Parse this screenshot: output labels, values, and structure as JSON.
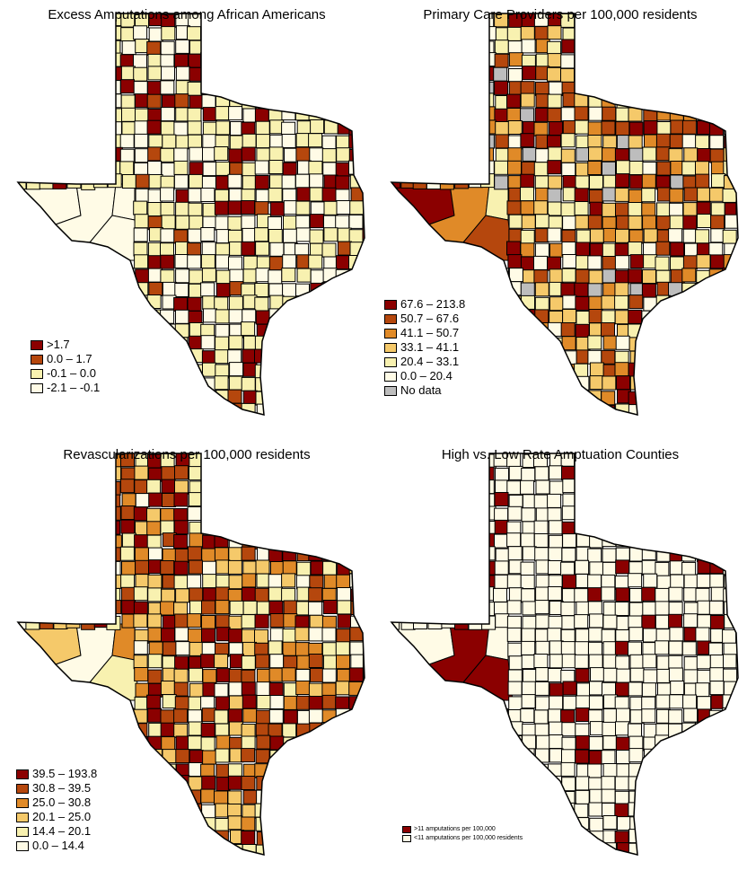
{
  "panels": [
    {
      "title": "Excess Amputations among African Americans",
      "legend": [
        {
          "label": ">1.7",
          "color": "#8b0000"
        },
        {
          "label": "0.0 – 1.7",
          "color": "#b5470d"
        },
        {
          "label": "-0.1 – 0.0",
          "color": "#f8f1b0"
        },
        {
          "label": "-2.1 – -0.1",
          "color": "#fffbe6"
        }
      ]
    },
    {
      "title": "Primary Care Providers per 100,000 residents",
      "legend": [
        {
          "label": "67.6 – 213.8",
          "color": "#8b0000"
        },
        {
          "label": "50.7 – 67.6",
          "color": "#b5470d"
        },
        {
          "label": "41.1 – 50.7",
          "color": "#e08a28"
        },
        {
          "label": "33.1 – 41.1",
          "color": "#f5c96a"
        },
        {
          "label": "20.4 – 33.1",
          "color": "#f8f1b0"
        },
        {
          "label": "0.0 – 20.4",
          "color": "#fffbe6"
        },
        {
          "label": "No data",
          "color": "#bdbdbd"
        }
      ]
    },
    {
      "title": "Revascularizations per 100,000 residents",
      "legend": [
        {
          "label": "39.5 – 193.8",
          "color": "#8b0000"
        },
        {
          "label": "30.8 – 39.5",
          "color": "#b5470d"
        },
        {
          "label": "25.0 – 30.8",
          "color": "#e08a28"
        },
        {
          "label": "20.1 – 25.0",
          "color": "#f5c96a"
        },
        {
          "label": "14.4 – 20.1",
          "color": "#f8f1b0"
        },
        {
          "label": "0.0 – 14.4",
          "color": "#fffbe6"
        }
      ]
    },
    {
      "title": "High vs. Low Rate Amptuation Counties",
      "legend": [
        {
          "label": ">11 amputations per 100,000",
          "color": "#8b0000"
        },
        {
          "label": "<11 amputations per 100,000 residents",
          "color": "#fffbe6"
        }
      ]
    }
  ]
}
